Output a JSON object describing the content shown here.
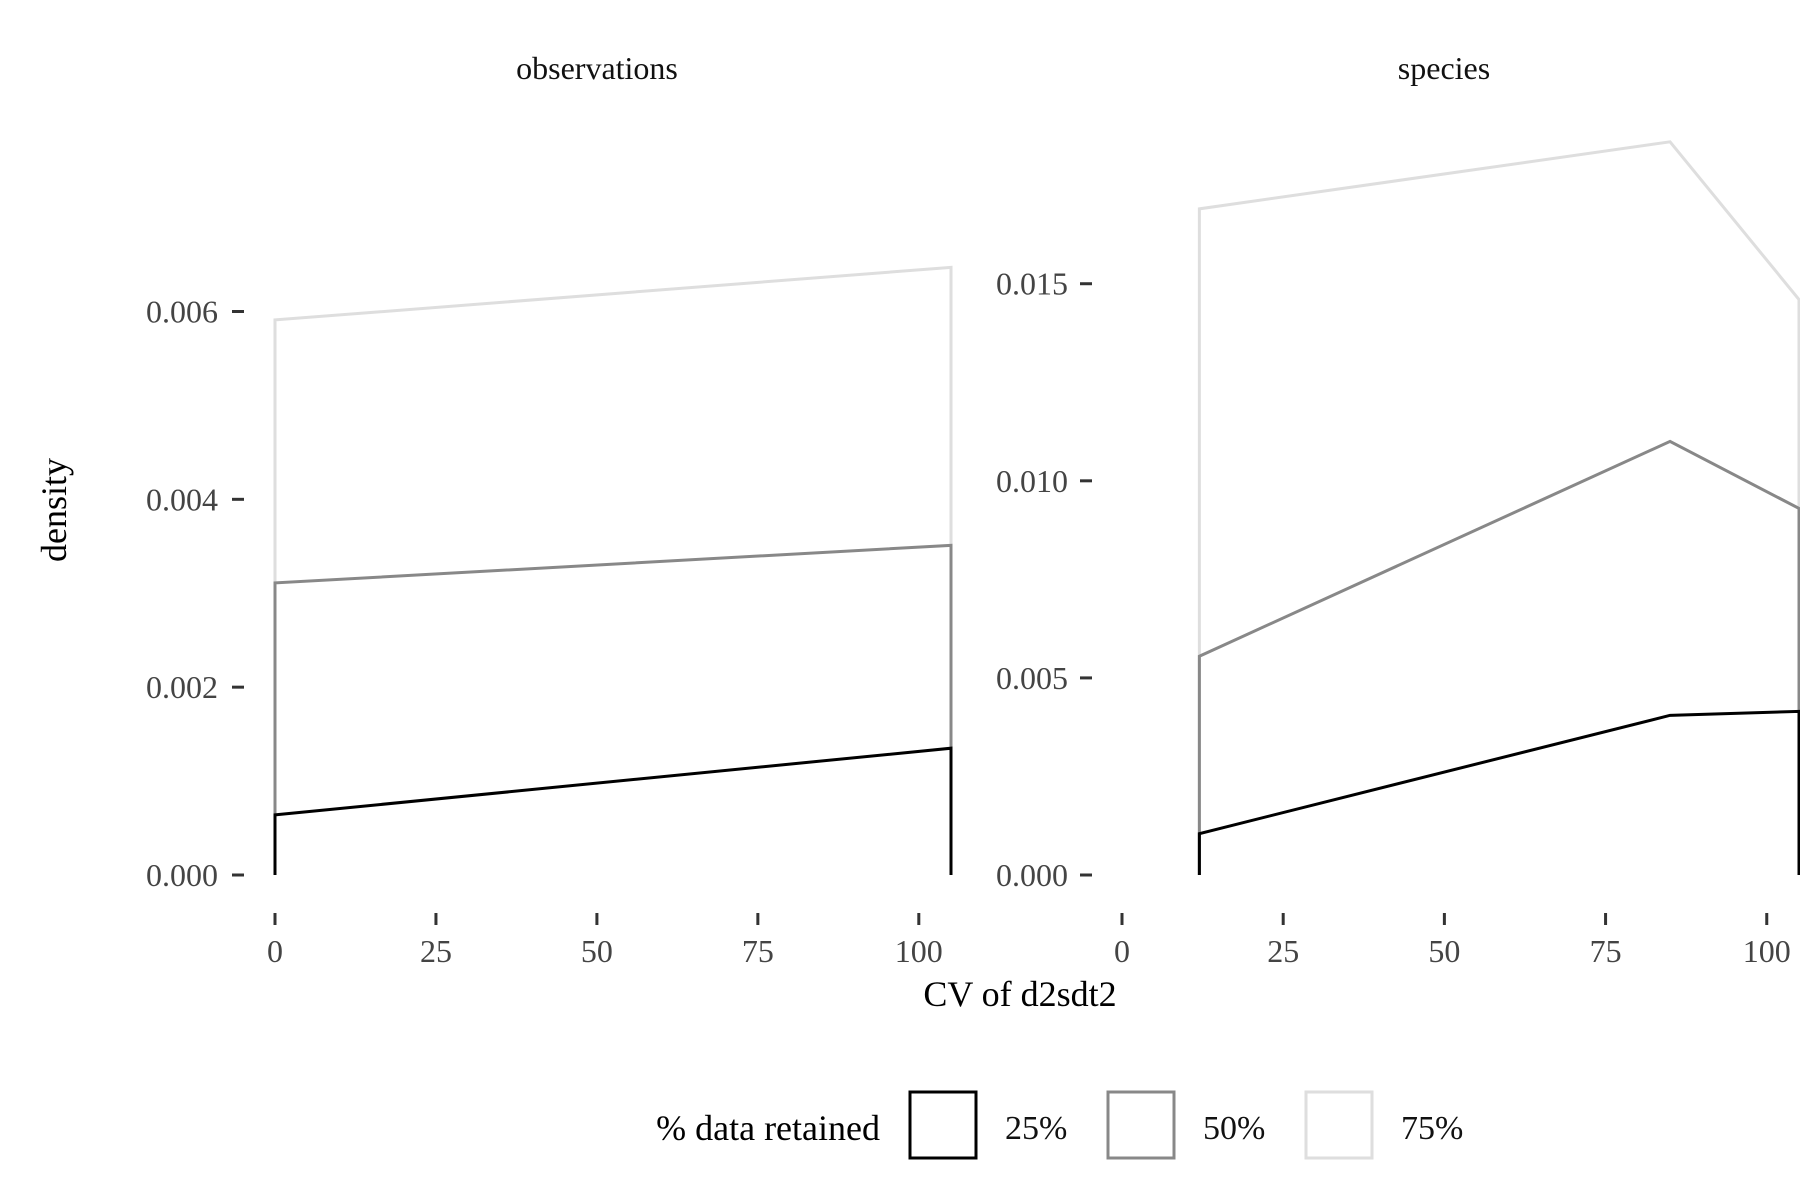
{
  "chart_data": {
    "type": "area",
    "xlabel": "CV of d2sdt2",
    "ylabel": "density",
    "legend": {
      "title": "% data retained",
      "position": "bottom",
      "entries": [
        {
          "label": "25%",
          "color": "#000000"
        },
        {
          "label": "50%",
          "color": "#888888"
        },
        {
          "label": "75%",
          "color": "#dedede"
        }
      ]
    },
    "grid": false,
    "panels": [
      {
        "title": "observations",
        "xlim": [
          0,
          105
        ],
        "ylim": [
          0,
          0.0074
        ],
        "xticks": [
          "0",
          "25",
          "50",
          "75",
          "100"
        ],
        "xtick_values": [
          0,
          25,
          50,
          75,
          100
        ],
        "yticks": [
          "0.000",
          "0.002",
          "0.004",
          "0.006"
        ],
        "ytick_values": [
          0,
          0.002,
          0.004,
          0.006
        ],
        "series": [
          {
            "name": "25%",
            "color": "#000000",
            "x": [
              0,
              105
            ],
            "y": [
              0.00064,
              0.00135
            ]
          },
          {
            "name": "50%",
            "color": "#888888",
            "x": [
              0,
              105
            ],
            "y": [
              0.00311,
              0.00351
            ]
          },
          {
            "name": "75%",
            "color": "#dedede",
            "x": [
              0,
              105
            ],
            "y": [
              0.00591,
              0.00647
            ]
          }
        ]
      },
      {
        "title": "species",
        "xlim": [
          0,
          105
        ],
        "ylim": [
          0,
          0.0189
        ],
        "xticks": [
          "0",
          "25",
          "50",
          "75",
          "100"
        ],
        "xtick_values": [
          0,
          25,
          50,
          75,
          100
        ],
        "yticks": [
          "0.000",
          "0.005",
          "0.010",
          "0.015"
        ],
        "ytick_values": [
          0,
          0.005,
          0.01,
          0.015
        ],
        "series": [
          {
            "name": "25%",
            "color": "#000000",
            "x": [
              12,
              85,
              105
            ],
            "y": [
              0.00105,
              0.00405,
              0.00415
            ]
          },
          {
            "name": "50%",
            "color": "#888888",
            "x": [
              12,
              85,
              105
            ],
            "y": [
              0.00555,
              0.011,
              0.0093
            ]
          },
          {
            "name": "75%",
            "color": "#dedede",
            "x": [
              12,
              85,
              105
            ],
            "y": [
              0.0169,
              0.0186,
              0.0146
            ]
          }
        ]
      }
    ]
  }
}
